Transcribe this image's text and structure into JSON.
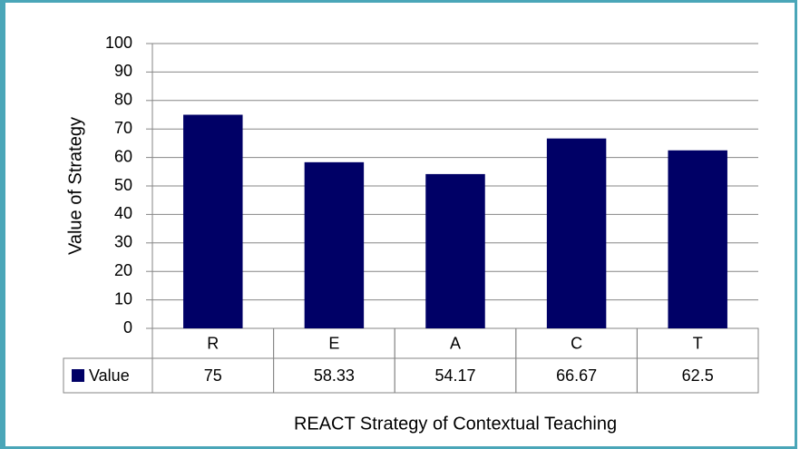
{
  "chart_data": {
    "type": "bar",
    "x_label": "REACT Strategy of Contextual Teaching",
    "y_label": "Value of Strategy",
    "categories": [
      "R",
      "E",
      "A",
      "C",
      "T"
    ],
    "series": [
      {
        "name": "Value",
        "color": "#000066",
        "values": [
          75,
          58.33,
          54.17,
          66.67,
          62.5
        ]
      }
    ],
    "ylim": [
      0,
      100
    ],
    "yticks": [
      0,
      10,
      20,
      30,
      40,
      50,
      60,
      70,
      80,
      90,
      100
    ],
    "grid": true,
    "data_table": true
  }
}
